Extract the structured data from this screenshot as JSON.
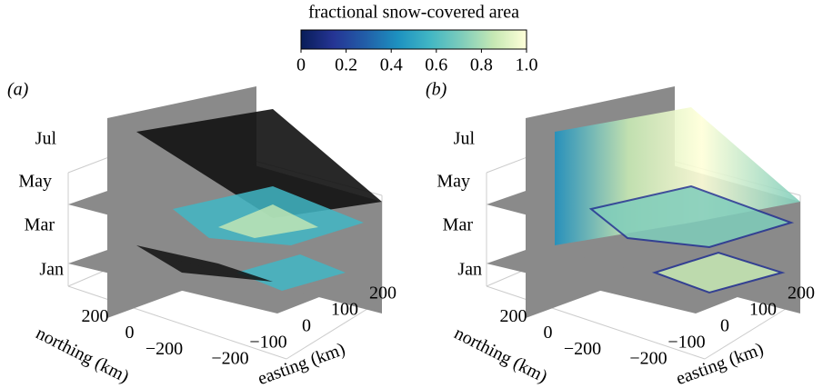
{
  "colorbar": {
    "label": "fractional snow-covered area",
    "lim": [
      0,
      1
    ],
    "ticks": [
      0,
      0.2,
      0.4,
      0.6,
      0.8,
      {
        "value": 1,
        "label": "1.0"
      }
    ],
    "colors": [
      "#081d58",
      "#253494",
      "#225ea8",
      "#1d91c0",
      "#41b6c4",
      "#7fcdbb",
      "#c7e9b4",
      "#ffffd9"
    ]
  },
  "chart_data": [
    {
      "type": "volume-slice",
      "panel_label": "(a)",
      "zticks": [
        "Jan",
        "Mar",
        "May",
        "Jul"
      ],
      "ylabel": "northing (km)",
      "yticks": [
        {
          "value": 200,
          "label": "200"
        },
        {
          "value": 0,
          "label": "0"
        },
        {
          "value": -200,
          "label": "−200"
        }
      ],
      "xlabel": "easting (km)",
      "xticks": [
        {
          "value": -200,
          "label": "−200"
        },
        {
          "value": -100,
          "label": "−100"
        },
        {
          "value": 0,
          "label": "0"
        },
        {
          "value": 100,
          "label": "100"
        },
        {
          "value": 200,
          "label": "200"
        }
      ],
      "xlim": [
        -250,
        250
      ],
      "ylim": [
        -250,
        250
      ]
    },
    {
      "type": "volume-slice",
      "panel_label": "(b)",
      "zticks": [
        "Jan",
        "Mar",
        "May",
        "Jul"
      ],
      "ylabel": "northing (km)",
      "yticks": [
        {
          "value": 200,
          "label": "200"
        },
        {
          "value": 0,
          "label": "0"
        },
        {
          "value": -200,
          "label": "−200"
        }
      ],
      "xlabel": "easting (km)",
      "xticks": [
        {
          "value": -200,
          "label": "−200"
        },
        {
          "value": -100,
          "label": "−100"
        },
        {
          "value": 0,
          "label": "0"
        },
        {
          "value": 100,
          "label": "100"
        },
        {
          "value": 200,
          "label": "200"
        }
      ],
      "xlim": [
        -250,
        250
      ],
      "ylim": [
        -250,
        250
      ]
    }
  ]
}
